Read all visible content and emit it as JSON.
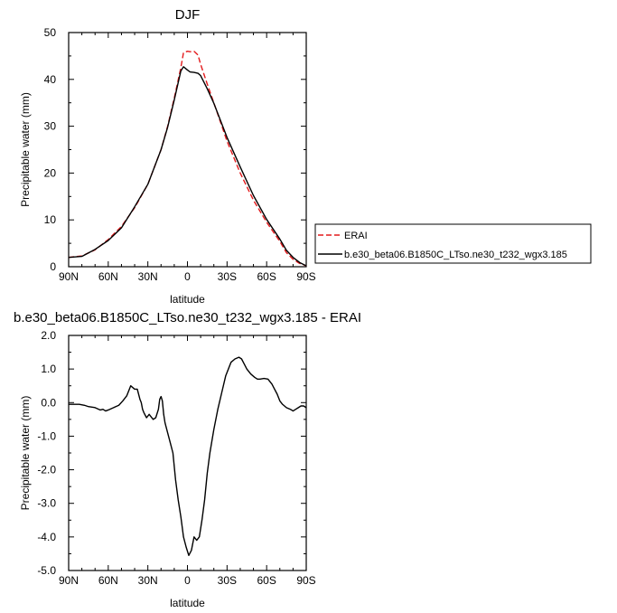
{
  "colors": {
    "erai": "#e31a1c",
    "model": "#000000",
    "axis": "#000000",
    "background": "#ffffff"
  },
  "chart_data": [
    {
      "type": "line",
      "title": "DJF",
      "xlabel": "latitude",
      "ylabel": "Precipitable water (mm)",
      "xlim": [
        90,
        -90
      ],
      "ylim": [
        0,
        50
      ],
      "x_ticks": [
        90,
        60,
        30,
        0,
        -30,
        -60,
        -90
      ],
      "x_tick_labels": [
        "90N",
        "60N",
        "30N",
        "0",
        "30S",
        "60S",
        "90S"
      ],
      "y_ticks": [
        0,
        10,
        20,
        30,
        40,
        50
      ],
      "y_tick_labels": [
        "0",
        "10",
        "20",
        "30",
        "40",
        "50"
      ],
      "grid": false,
      "legend_position": "right",
      "series": [
        {
          "name": "ERAI",
          "style": "dashed",
          "color": "#e31a1c",
          "x": [
            90,
            80,
            70,
            60,
            50,
            40,
            30,
            20,
            15,
            10,
            5,
            3,
            0,
            -2,
            -5,
            -8,
            -10,
            -15,
            -20,
            -30,
            -40,
            -50,
            -60,
            -70,
            -75,
            -80,
            -85,
            -90
          ],
          "y": [
            2.0,
            2.3,
            3.6,
            5.8,
            8.6,
            12.6,
            17.6,
            25.0,
            30.0,
            36.0,
            42.5,
            45.7,
            46.0,
            45.9,
            46.0,
            45.2,
            43.2,
            39.0,
            35.0,
            26.8,
            20.0,
            14.2,
            9.5,
            5.4,
            3.0,
            1.6,
            0.7,
            0.2
          ]
        },
        {
          "name": "b.e30_beta06.B1850C_LTso.ne30_t232_wgx3.185",
          "style": "solid",
          "color": "#000000",
          "x": [
            90,
            80,
            70,
            60,
            50,
            40,
            30,
            20,
            15,
            10,
            5,
            3,
            0,
            -2,
            -5,
            -8,
            -10,
            -15,
            -20,
            -30,
            -40,
            -50,
            -60,
            -70,
            -75,
            -80,
            -85,
            -90
          ],
          "y": [
            2.0,
            2.2,
            3.7,
            5.6,
            8.3,
            12.8,
            17.6,
            25.0,
            29.8,
            35.6,
            41.8,
            42.7,
            42.0,
            41.6,
            41.5,
            41.3,
            40.8,
            38.0,
            34.9,
            27.6,
            21.3,
            15.2,
            10.1,
            5.9,
            3.5,
            2.0,
            0.9,
            0.2
          ]
        }
      ]
    },
    {
      "type": "line",
      "title": "b.e30_beta06.B1850C_LTso.ne30_t232_wgx3.185 - ERAI",
      "xlabel": "latitude",
      "ylabel": "Precipitable water (mm)",
      "xlim": [
        90,
        -90
      ],
      "ylim": [
        -5,
        2
      ],
      "x_ticks": [
        90,
        60,
        30,
        0,
        -30,
        -60,
        -90
      ],
      "x_tick_labels": [
        "90N",
        "60N",
        "30N",
        "0",
        "30S",
        "60S",
        "90S"
      ],
      "y_ticks": [
        2,
        1,
        0,
        -1,
        -2,
        -3,
        -4,
        -5
      ],
      "y_tick_labels": [
        "2.0",
        "1.0",
        "0.0",
        "-1.0",
        "-2.0",
        "-3.0",
        "-4.0",
        "-5.0"
      ],
      "grid": false,
      "series": [
        {
          "color": "#000000",
          "style": "solid",
          "x": [
            90,
            82,
            78,
            75,
            70,
            66,
            64,
            62,
            60,
            56,
            52,
            49,
            46,
            43,
            40,
            38,
            36,
            35,
            34,
            33,
            31,
            29,
            28,
            26,
            24,
            22,
            21,
            20,
            19,
            18,
            17,
            15,
            13,
            11,
            9,
            7,
            5,
            4,
            3,
            1,
            -1,
            -3,
            -5,
            -7,
            -9,
            -11,
            -13,
            -15,
            -17,
            -20,
            -23,
            -26,
            -29,
            -33,
            -36,
            -39,
            -41,
            -43,
            -45,
            -48,
            -51,
            -53,
            -55,
            -58,
            -61,
            -64,
            -66,
            -68,
            -70,
            -72,
            -75,
            -78,
            -80,
            -82,
            -84,
            -86,
            -88,
            -90
          ],
          "y": [
            -0.05,
            -0.05,
            -0.08,
            -0.12,
            -0.15,
            -0.22,
            -0.2,
            -0.25,
            -0.22,
            -0.15,
            -0.08,
            0.05,
            0.2,
            0.5,
            0.4,
            0.4,
            0.1,
            0.0,
            -0.2,
            -0.3,
            -0.45,
            -0.35,
            -0.4,
            -0.5,
            -0.45,
            -0.2,
            0.1,
            0.18,
            0.05,
            -0.35,
            -0.6,
            -0.9,
            -1.2,
            -1.5,
            -2.3,
            -2.9,
            -3.4,
            -3.7,
            -4.0,
            -4.3,
            -4.55,
            -4.4,
            -4.0,
            -4.1,
            -4.0,
            -3.5,
            -2.9,
            -2.1,
            -1.5,
            -0.8,
            -0.2,
            0.3,
            0.8,
            1.2,
            1.3,
            1.35,
            1.3,
            1.15,
            1.0,
            0.85,
            0.75,
            0.7,
            0.7,
            0.72,
            0.7,
            0.55,
            0.4,
            0.25,
            0.05,
            -0.05,
            -0.15,
            -0.2,
            -0.25,
            -0.2,
            -0.15,
            -0.1,
            -0.1,
            -0.15
          ]
        }
      ]
    }
  ]
}
